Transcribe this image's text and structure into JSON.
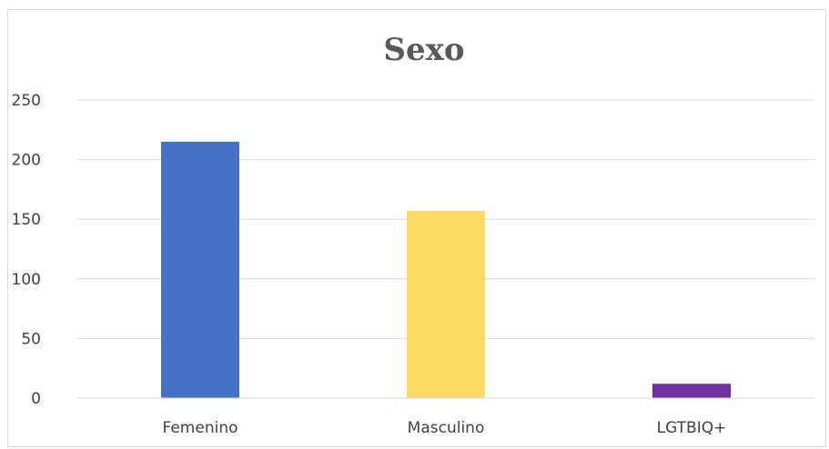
{
  "chart_data": {
    "type": "bar",
    "title": "Sexo",
    "categories": [
      "Femenino",
      "Masculino",
      "LGTBIQ+"
    ],
    "values": [
      215,
      157,
      12
    ],
    "colors": [
      "#4472c4",
      "#ffd966",
      "#7030a0"
    ],
    "ylim": [
      0,
      250
    ],
    "yticks": [
      0,
      50,
      100,
      150,
      200,
      250
    ],
    "ytick_labels": [
      "0",
      "50",
      "100",
      "150",
      "200",
      "250"
    ],
    "xlabel": "",
    "ylabel": "",
    "grid": true,
    "legend": "none"
  }
}
